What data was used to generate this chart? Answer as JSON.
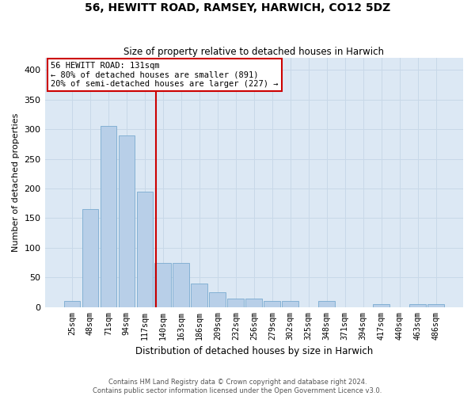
{
  "title": "56, HEWITT ROAD, RAMSEY, HARWICH, CO12 5DZ",
  "subtitle": "Size of property relative to detached houses in Harwich",
  "xlabel": "Distribution of detached houses by size in Harwich",
  "ylabel": "Number of detached properties",
  "footer_line1": "Contains HM Land Registry data © Crown copyright and database right 2024.",
  "footer_line2": "Contains public sector information licensed under the Open Government Licence v3.0.",
  "categories": [
    "25sqm",
    "48sqm",
    "71sqm",
    "94sqm",
    "117sqm",
    "140sqm",
    "163sqm",
    "186sqm",
    "209sqm",
    "232sqm",
    "256sqm",
    "279sqm",
    "302sqm",
    "325sqm",
    "348sqm",
    "371sqm",
    "394sqm",
    "417sqm",
    "440sqm",
    "463sqm",
    "486sqm"
  ],
  "values": [
    10,
    165,
    305,
    290,
    195,
    75,
    75,
    40,
    25,
    15,
    15,
    10,
    10,
    0,
    10,
    0,
    0,
    5,
    0,
    5,
    5
  ],
  "bar_color": "#b8cfe8",
  "bar_edge_color": "#7aaad0",
  "grid_color": "#c8d8e8",
  "background_color": "#dce8f4",
  "vline_color": "#cc0000",
  "annotation_text": "56 HEWITT ROAD: 131sqm\n← 80% of detached houses are smaller (891)\n20% of semi-detached houses are larger (227) →",
  "annotation_box_edge_color": "#cc0000",
  "ylim": [
    0,
    420
  ],
  "yticks": [
    0,
    50,
    100,
    150,
    200,
    250,
    300,
    350,
    400
  ],
  "figsize": [
    6.0,
    5.0
  ],
  "dpi": 100
}
